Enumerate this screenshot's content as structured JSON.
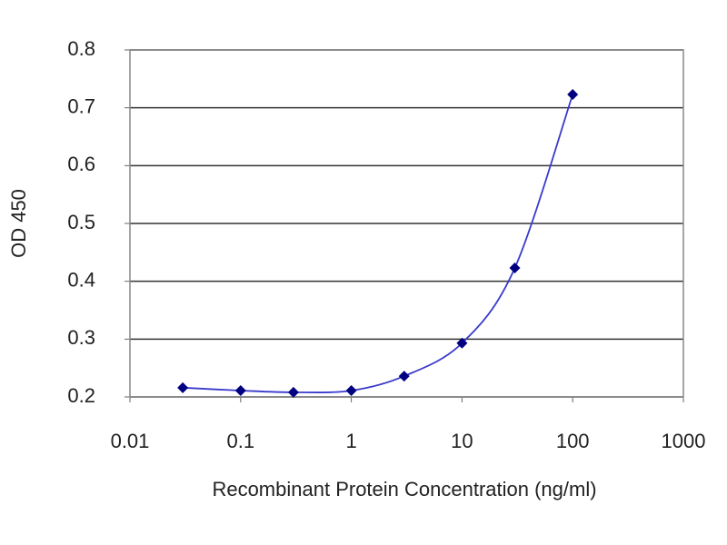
{
  "chart_data": {
    "type": "line",
    "x_label": "Recombinant Protein Concentration (ng/ml)",
    "y_label": "OD 450",
    "xscale": "log",
    "x": [
      0.03,
      0.1,
      0.3,
      1,
      3,
      10,
      30,
      100
    ],
    "series": [
      {
        "name": "OD 450",
        "color": "#3a3acc",
        "marker_color": "#000080",
        "values": [
          0.216,
          0.211,
          0.208,
          0.211,
          0.236,
          0.293,
          0.423,
          0.723
        ]
      }
    ],
    "xlim": [
      0.01,
      1000
    ],
    "xticks": [
      0.01,
      0.1,
      1,
      10,
      100,
      1000
    ],
    "ylim": [
      0.2,
      0.8
    ],
    "yticks": [
      {
        "value": 0.2,
        "label": "0.2"
      },
      {
        "value": 0.3,
        "label": "0.3"
      },
      {
        "value": 0.4,
        "label": "0.4"
      },
      {
        "value": 0.5,
        "label": "0.5"
      },
      {
        "value": 0.6,
        "label": "0.6"
      },
      {
        "value": 0.7,
        "label": "0.7"
      },
      {
        "value": 0.8,
        "label": "0.8"
      }
    ],
    "grid": true
  }
}
